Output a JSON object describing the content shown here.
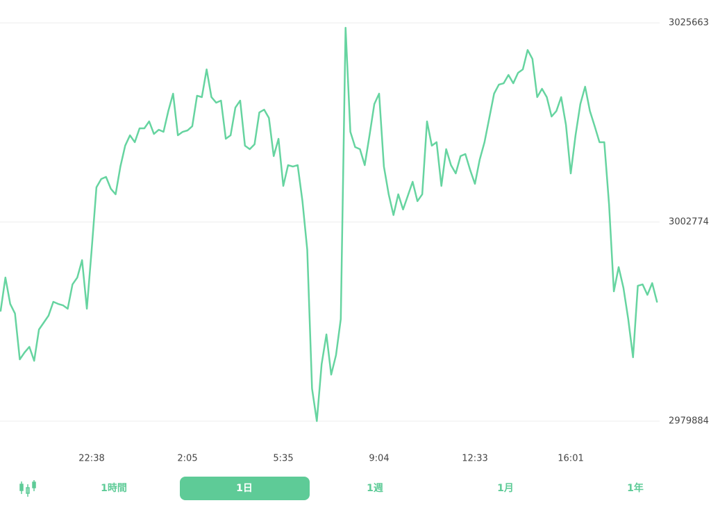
{
  "chart_data": {
    "type": "line",
    "color": "#66d4a0",
    "grid": true,
    "ylim": [
      2979884,
      3025663
    ],
    "yticks": [
      2979884,
      3002774,
      3025663
    ],
    "categories": [
      null,
      null,
      null,
      null,
      null,
      null,
      null,
      null,
      null,
      null,
      null,
      null,
      null,
      null,
      null,
      null,
      null,
      null,
      null,
      "22:38",
      null,
      null,
      null,
      null,
      null,
      null,
      null,
      null,
      null,
      null,
      null,
      null,
      null,
      null,
      null,
      null,
      null,
      null,
      null,
      "2:05",
      null,
      null,
      null,
      null,
      null,
      null,
      null,
      null,
      null,
      null,
      null,
      null,
      null,
      null,
      null,
      null,
      null,
      null,
      null,
      "5:35",
      null,
      null,
      null,
      null,
      null,
      null,
      null,
      null,
      null,
      null,
      null,
      null,
      null,
      null,
      null,
      null,
      null,
      null,
      null,
      "9:04",
      null,
      null,
      null,
      null,
      null,
      null,
      null,
      null,
      null,
      null,
      null,
      null,
      null,
      null,
      null,
      null,
      null,
      null,
      null,
      "12:33",
      null,
      null,
      null,
      null,
      null,
      null,
      null,
      null,
      null,
      null,
      null,
      null,
      null,
      null,
      null,
      null,
      null,
      null,
      null,
      "16:01",
      null,
      null,
      null,
      null,
      null,
      null,
      null,
      null,
      null,
      null,
      null,
      null,
      null,
      null,
      null,
      null,
      null,
      null
    ],
    "values": [
      2992560,
      2996390,
      2993360,
      2992250,
      2986980,
      2987780,
      2988420,
      2986820,
      2990410,
      2991210,
      2992010,
      2993600,
      2993360,
      2993200,
      2992800,
      2995600,
      2996390,
      2998390,
      2992800,
      2999580,
      3006760,
      3007720,
      3007960,
      3006600,
      3005960,
      3009150,
      3011550,
      3012740,
      3011950,
      3013540,
      3013540,
      3014340,
      3012900,
      3013380,
      3013140,
      3015530,
      3017530,
      3012740,
      3013140,
      3013300,
      3013780,
      3017290,
      3017130,
      3020320,
      3017130,
      3016490,
      3016730,
      3012340,
      3012740,
      3015930,
      3016730,
      3011550,
      3011150,
      3011710,
      3015370,
      3015690,
      3014740,
      3010350,
      3012340,
      3006920,
      3009310,
      3009150,
      3009310,
      3005170,
      2999580,
      2983630,
      2979884,
      2986420,
      2989850,
      2985230,
      2987460,
      2991610,
      3025100,
      3013140,
      3011390,
      3011150,
      3009310,
      3012740,
      3016330,
      3017530,
      3009150,
      3005960,
      3003570,
      3005960,
      3004210,
      3005800,
      3007400,
      3005170,
      3005960,
      3014340,
      3011550,
      3011950,
      3006920,
      3011150,
      3009310,
      3008360,
      3010350,
      3010590,
      3008760,
      3007160,
      3009950,
      3011950,
      3014740,
      3017530,
      3018570,
      3018720,
      3019680,
      3018720,
      3019920,
      3020320,
      3022550,
      3021520,
      3017130,
      3018090,
      3017130,
      3014900,
      3015530,
      3017130,
      3013940,
      3008360,
      3012740,
      3016330,
      3018330,
      3015530,
      3013780,
      3011950,
      3011950,
      3004770,
      2994800,
      2997590,
      2995200,
      2991610,
      2987220,
      2995440,
      2995600,
      2994400,
      2995750,
      2993600
    ]
  },
  "tabs": {
    "items": [
      "1時間",
      "1日",
      "1週",
      "1月",
      "1年"
    ],
    "selected": 1
  }
}
